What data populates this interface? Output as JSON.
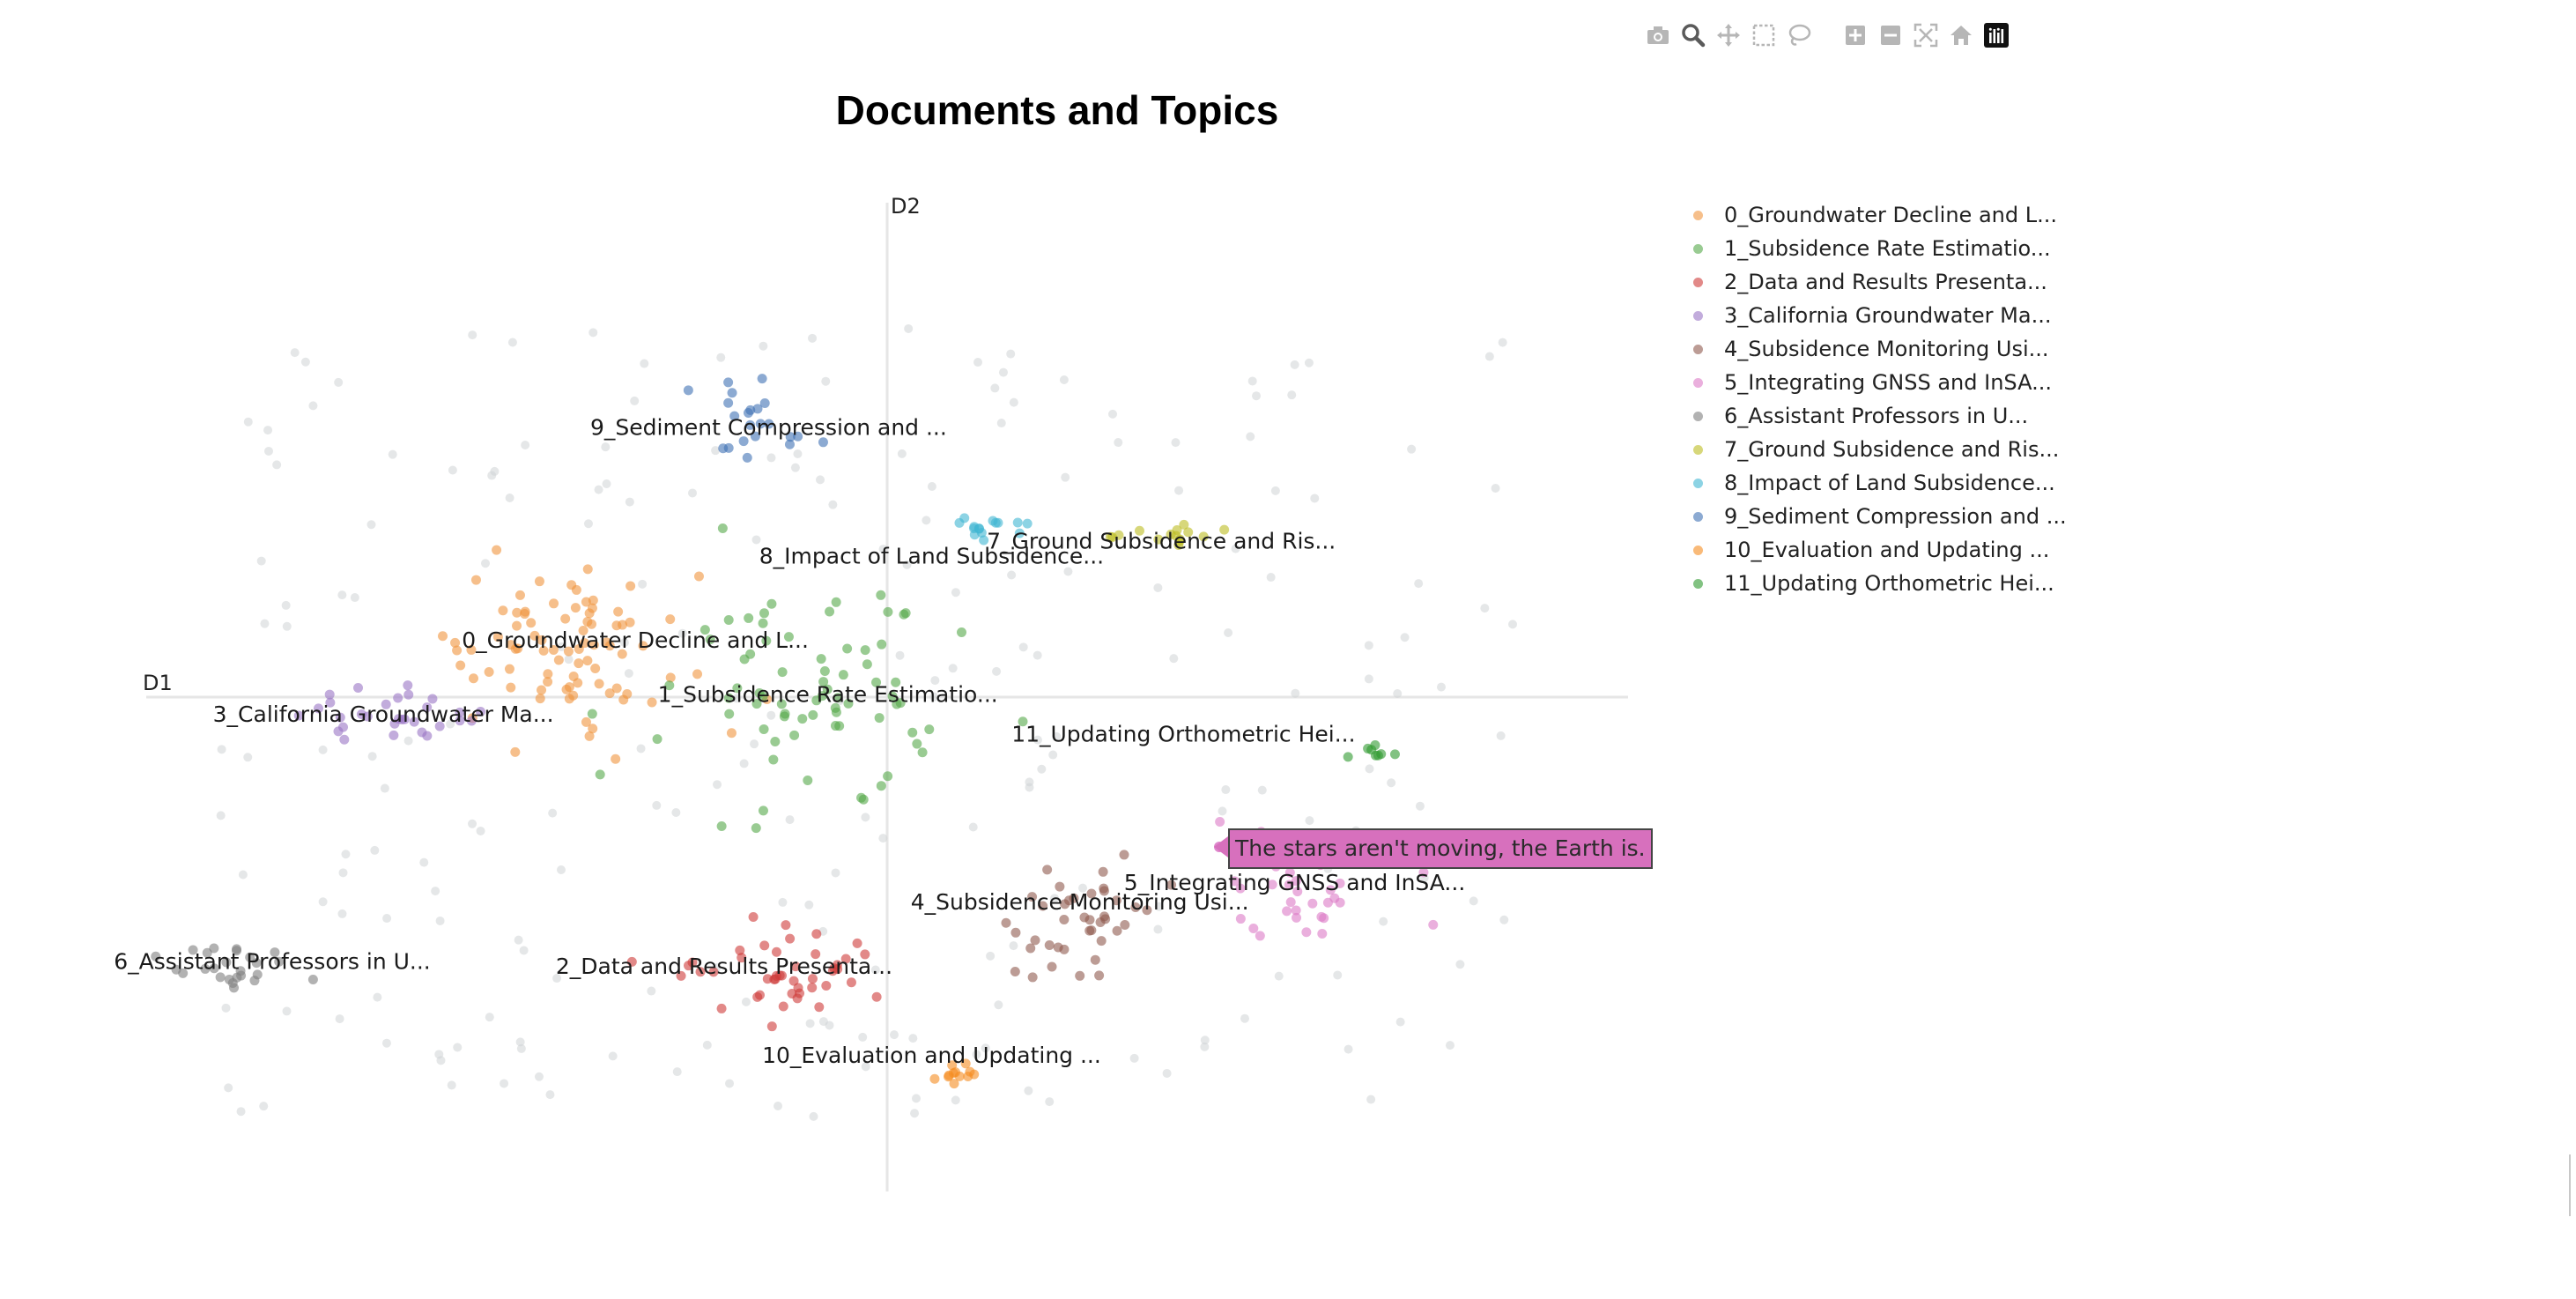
{
  "title": "Documents and Topics",
  "modebar": {
    "buttons": [
      {
        "name": "camera-icon",
        "title": "Download plot as a png"
      },
      {
        "name": "zoom-icon",
        "title": "Zoom"
      },
      {
        "name": "pan-icon",
        "title": "Pan"
      },
      {
        "name": "box-select-icon",
        "title": "Box Select"
      },
      {
        "name": "lasso-select-icon",
        "title": "Lasso Select"
      },
      {
        "name": "zoom-in-icon",
        "title": "Zoom in"
      },
      {
        "name": "zoom-out-icon",
        "title": "Zoom out"
      },
      {
        "name": "autoscale-icon",
        "title": "Autoscale"
      },
      {
        "name": "reset-axes-icon",
        "title": "Reset axes"
      },
      {
        "name": "plotly-logo-icon",
        "title": "Produced with Plotly"
      }
    ]
  },
  "hover_label": "The stars aren't moving, the Earth is.",
  "chart_data": {
    "type": "scatter",
    "title": "Documents and Topics",
    "xlabel": "D1",
    "ylabel": "D2",
    "xlim": [
      -100,
      100
    ],
    "ylim": [
      -100,
      100
    ],
    "grid": false,
    "zero_lines": true,
    "legend_position": "right",
    "unassigned_color": "#cfd3d6",
    "series": [
      {
        "name": "0_Groundwater Decline and L...",
        "color": "#f0953e",
        "cluster": {
          "cx": -43,
          "cy": 10,
          "sx": 13,
          "sy": 11,
          "n": 85
        },
        "label": {
          "x": -34,
          "y": 10
        }
      },
      {
        "name": "1_Subsidence Rate Estimatio...",
        "color": "#55a84a",
        "cluster": {
          "cx": -8,
          "cy": 2,
          "sx": 15,
          "sy": 18,
          "n": 75
        },
        "label": {
          "x": -8,
          "y": -1
        }
      },
      {
        "name": "2_Data and Results Presenta...",
        "color": "#cf3b38",
        "cluster": {
          "cx": -16,
          "cy": -56,
          "sx": 10,
          "sy": 6,
          "n": 45
        },
        "label": {
          "x": -22,
          "y": -56
        }
      },
      {
        "name": "3_California Groundwater Ma...",
        "color": "#9a74c4",
        "cluster": {
          "cx": -67,
          "cy": -4,
          "sx": 8,
          "sy": 4,
          "n": 30
        },
        "label": {
          "x": -68,
          "y": -5
        }
      },
      {
        "name": "4_Subsidence Monitoring Usi...",
        "color": "#8f5a4e",
        "cluster": {
          "cx": 28,
          "cy": -46,
          "sx": 8,
          "sy": 8,
          "n": 40
        },
        "label": {
          "x": 26,
          "y": -43
        }
      },
      {
        "name": "5_Integrating GNSS and InSA...",
        "color": "#dc7ac6",
        "cluster": {
          "cx": 55,
          "cy": -43,
          "sx": 9,
          "sy": 8,
          "n": 30
        },
        "label": {
          "x": 55,
          "y": -39
        }
      },
      {
        "name": "6_Assistant Professors in U...",
        "color": "#7f7f7f",
        "cluster": {
          "cx": -86,
          "cy": -55,
          "sx": 6,
          "sy": 3,
          "n": 25
        },
        "label": {
          "x": -83,
          "y": -55
        }
      },
      {
        "name": "7_Ground Subsidence and Ris...",
        "color": "#bcbd22",
        "cluster": {
          "cx": 38,
          "cy": 33,
          "sx": 6,
          "sy": 2,
          "n": 15
        },
        "label": {
          "x": 37,
          "y": 30
        }
      },
      {
        "name": "8_Impact of Land Subsidence...",
        "color": "#3fb5d2",
        "cluster": {
          "cx": 12,
          "cy": 34,
          "sx": 4,
          "sy": 2,
          "n": 15
        },
        "label": {
          "x": 6,
          "y": 27
        }
      },
      {
        "name": "9_Sediment Compression and ...",
        "color": "#3f72b4",
        "cluster": {
          "cx": -18,
          "cy": 56,
          "sx": 6,
          "sy": 5,
          "n": 22
        },
        "label": {
          "x": -16,
          "y": 53
        }
      },
      {
        "name": "10_Evaluation and Updating ...",
        "color": "#f58c20",
        "cluster": {
          "cx": 10,
          "cy": -76,
          "sx": 3,
          "sy": 2,
          "n": 12
        },
        "label": {
          "x": 6,
          "y": -74
        }
      },
      {
        "name": "11_Updating Orthometric Hei...",
        "color": "#2e9a2e",
        "cluster": {
          "cx": 66,
          "cy": -11,
          "sx": 2,
          "sy": 1,
          "n": 8
        },
        "label": {
          "x": 40,
          "y": -9
        }
      }
    ]
  }
}
